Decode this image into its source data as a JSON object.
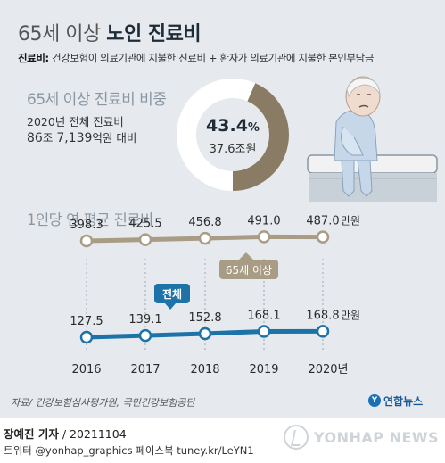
{
  "title": {
    "light": "65세 이상 ",
    "bold": "노인 진료비"
  },
  "definition": {
    "label": "진료비:",
    "text": " 건강보험이 의료기관에 지불한 진료비 + 환자가 의료기관에 지불한 본인부담금"
  },
  "share": {
    "title": "65세 이상 진료비 비중",
    "total_line1": "2020년 전체 진료비",
    "total_big1": "86",
    "total_unit1": "조 ",
    "total_big2": "7,139",
    "total_unit2": "억원 대비",
    "percent": "43.4",
    "percent_unit": "%",
    "amount": "37.6조원"
  },
  "avg_title": "1인당 연 평균 진료비",
  "source": "자료/ 건강보험심사평가원, 국민건강보험공단",
  "logo_text": "연합뉴스",
  "byline": {
    "reporter": "장예진 기자",
    "sep": " / ",
    "date": "20211104"
  },
  "social": "트위터 @yonhap_graphics  페이스북 tuney.kr/LeYN1",
  "watermark": "YONHAP NEWS",
  "colors": {
    "background": "#e6eaee",
    "donut_accent": "#8a7b64",
    "senior_line": "#a89c85",
    "total_line": "#1d73a8",
    "heading_gray": "#8a96a2"
  },
  "chart_data": [
    {
      "type": "pie",
      "title": "65세 이상 진료비 비중",
      "slices": [
        {
          "label": "65세 이상",
          "value": 43.4
        },
        {
          "label": "",
          "value": 56.6
        }
      ],
      "center_text": "43.4%",
      "center_sub": "37.6조원",
      "unit": "%"
    },
    {
      "type": "line",
      "title": "1인당 연 평균 진료비",
      "x": [
        "2016",
        "2017",
        "2018",
        "2019",
        "2020년"
      ],
      "series": [
        {
          "name": "65세 이상",
          "values": [
            398.3,
            425.5,
            456.8,
            491.0,
            487.0
          ],
          "labels": [
            "398.3",
            "425.5",
            "456.8",
            "491.0",
            "487.0"
          ],
          "color": "#a89c85"
        },
        {
          "name": "전체",
          "values": [
            127.5,
            139.1,
            152.8,
            168.1,
            168.8
          ],
          "labels": [
            "127.5",
            "139.1",
            "152.8",
            "168.1",
            "168.8"
          ],
          "color": "#1d73a8"
        }
      ],
      "unit_label": "만원",
      "grid": false
    }
  ]
}
